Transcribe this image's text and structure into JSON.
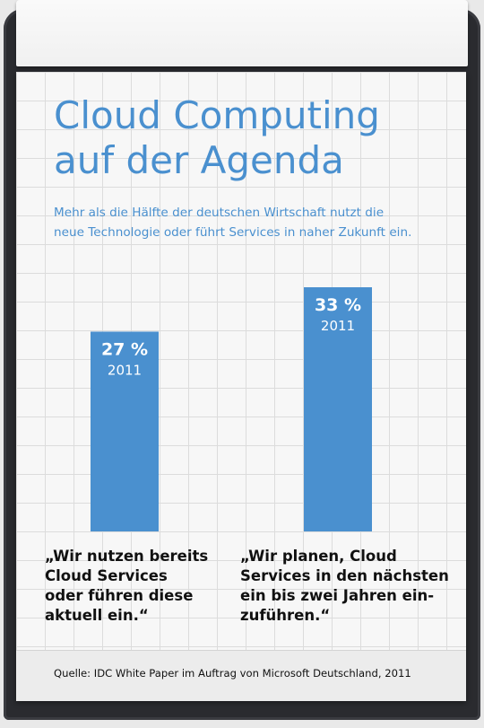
{
  "header": {
    "title_lines": [
      "Cloud Computing",
      "auf der Agenda"
    ],
    "subtitle_lines": [
      "Mehr als die Hälfte der deutschen Wirtschaft nutzt die",
      "neue Technologie oder führt Services in naher Zukunft ein."
    ]
  },
  "chart_data": {
    "type": "bar",
    "ylim": [
      0,
      40
    ],
    "bar_color": "#4a90cf",
    "label_color": "#ffffff",
    "bars": [
      {
        "value": 27,
        "value_label": "27 %",
        "year": "2011",
        "caption_lines": [
          "„Wir nutzen bereits",
          "Cloud Services",
          "oder führen diese",
          "aktuell ein.“"
        ]
      },
      {
        "value": 33,
        "value_label": "33 %",
        "year": "2011",
        "caption_lines": [
          "„Wir planen, Cloud",
          "Services in den nächsten",
          "ein bis zwei Jahren ein-",
          "zuführen.“"
        ]
      }
    ]
  },
  "footer": {
    "source": "Quelle: IDC White Paper im Auftrag von Microsoft Deutschland, 2011"
  }
}
